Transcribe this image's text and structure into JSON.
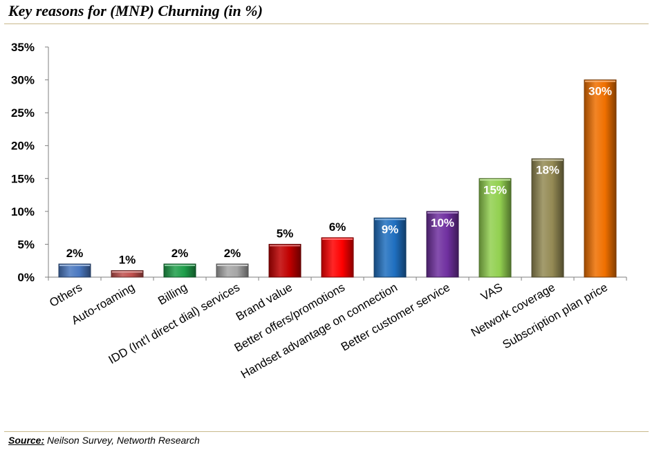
{
  "header": {
    "title": "Key reasons for (MNP) Churning (in %)"
  },
  "footer": {
    "source_label": "Source:",
    "source_text": " Neilson Survey, Networth Research"
  },
  "chart_data": {
    "type": "bar",
    "title": "Key reasons for (MNP) Churning (in %)",
    "xlabel": "",
    "ylabel": "",
    "ylim": [
      0,
      35
    ],
    "y_ticks": [
      "0%",
      "5%",
      "10%",
      "15%",
      "20%",
      "25%",
      "30%",
      "35%"
    ],
    "grid": false,
    "legend": "none",
    "categories": [
      "Others",
      "Auto-roaming",
      "Billing",
      "IDD (Int'l direct dial) services",
      "Brand value",
      "Better  offers/promotions",
      "Handset advantage on connection",
      "Better customer service",
      "VAS",
      "Network coverage",
      "Subscription plan price"
    ],
    "values": [
      2,
      1,
      2,
      2,
      5,
      6,
      9,
      10,
      15,
      18,
      30
    ],
    "data_labels": [
      "2%",
      "1%",
      "2%",
      "2%",
      "5%",
      "6%",
      "9%",
      "10%",
      "15%",
      "18%",
      "30%"
    ],
    "colors": [
      "#4a78c0",
      "#c0504d",
      "#1e9e4a",
      "#a6a6a6",
      "#c00000",
      "#ff0000",
      "#1f6fc0",
      "#7030a0",
      "#92d050",
      "#948a54",
      "#f07000"
    ]
  }
}
